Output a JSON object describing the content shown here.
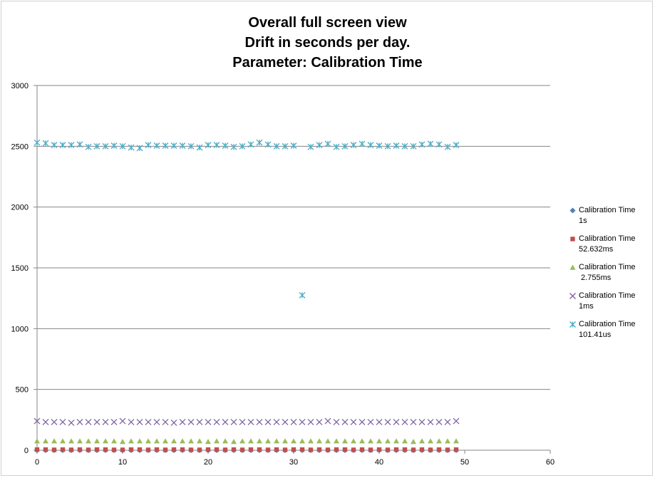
{
  "chart_data": {
    "type": "scatter",
    "title": [
      "Overall full screen view",
      "Drift in seconds per day.",
      "Parameter: Calibration Time"
    ],
    "xlabel": "",
    "ylabel": "",
    "xlim": [
      0,
      60
    ],
    "ylim": [
      0,
      3000
    ],
    "x_ticks": [
      "0",
      "10",
      "20",
      "30",
      "40",
      "50",
      "60"
    ],
    "y_ticks": [
      "0",
      "500",
      "1000",
      "1500",
      "2000",
      "2500",
      "3000"
    ],
    "grid": "horizontal",
    "legend_position": "right",
    "series": [
      {
        "name_lines": [
          "Calibration Time",
          "1s"
        ],
        "marker": "diamond-icon",
        "color": "#4f81bd",
        "x": [
          0,
          1,
          2,
          3,
          4,
          5,
          6,
          7,
          8,
          9,
          10,
          11,
          12,
          13,
          14,
          15,
          16,
          17,
          18,
          19,
          20,
          21,
          22,
          23,
          24,
          25,
          26,
          27,
          28,
          29,
          30,
          31,
          32,
          33,
          34,
          35,
          36,
          37,
          38,
          39,
          40,
          41,
          42,
          43,
          44,
          45,
          46,
          47,
          48,
          49
        ],
        "y": [
          0,
          0,
          0,
          0,
          0,
          0,
          0,
          0,
          0,
          0,
          0,
          0,
          0,
          0,
          0,
          0,
          0,
          0,
          0,
          0,
          0,
          0,
          0,
          0,
          0,
          0,
          0,
          0,
          0,
          0,
          0,
          0,
          0,
          0,
          0,
          0,
          0,
          0,
          0,
          0,
          0,
          0,
          0,
          0,
          0,
          0,
          0,
          0,
          0,
          0
        ]
      },
      {
        "name_lines": [
          "Calibration Time",
          "52.632ms"
        ],
        "marker": "square-icon",
        "color": "#c0504d",
        "x": [
          0,
          1,
          2,
          3,
          4,
          5,
          6,
          7,
          8,
          9,
          10,
          11,
          12,
          13,
          14,
          15,
          16,
          17,
          18,
          19,
          20,
          21,
          22,
          23,
          24,
          25,
          26,
          27,
          28,
          29,
          30,
          31,
          32,
          33,
          34,
          35,
          36,
          37,
          38,
          39,
          40,
          41,
          42,
          43,
          44,
          45,
          46,
          47,
          48,
          49
        ],
        "y": [
          5,
          5,
          3,
          5,
          3,
          5,
          3,
          5,
          5,
          3,
          3,
          5,
          5,
          3,
          5,
          3,
          5,
          5,
          3,
          3,
          5,
          5,
          3,
          5,
          3,
          5,
          5,
          3,
          5,
          3,
          5,
          5,
          3,
          5,
          3,
          5,
          5,
          3,
          5,
          3,
          5,
          3,
          5,
          5,
          3,
          5,
          3,
          5,
          3,
          5
        ]
      },
      {
        "name_lines": [
          "Calibration Time",
          " 2.755ms"
        ],
        "marker": "triangle-icon",
        "color": "#9bbb59",
        "x": [
          0,
          1,
          2,
          3,
          4,
          5,
          6,
          7,
          8,
          9,
          10,
          11,
          12,
          13,
          14,
          15,
          16,
          17,
          18,
          19,
          20,
          21,
          22,
          23,
          24,
          25,
          26,
          27,
          28,
          29,
          30,
          31,
          32,
          33,
          34,
          35,
          36,
          37,
          38,
          39,
          40,
          41,
          42,
          43,
          44,
          45,
          46,
          47,
          48,
          49
        ],
        "y": [
          75,
          75,
          75,
          75,
          75,
          75,
          75,
          75,
          75,
          75,
          70,
          75,
          75,
          75,
          75,
          75,
          75,
          75,
          75,
          75,
          70,
          75,
          75,
          70,
          75,
          75,
          75,
          75,
          75,
          75,
          75,
          75,
          75,
          75,
          75,
          75,
          75,
          75,
          75,
          75,
          75,
          75,
          75,
          75,
          70,
          75,
          75,
          75,
          75,
          75
        ]
      },
      {
        "name_lines": [
          "Calibration Time",
          "1ms"
        ],
        "marker": "x-mark-icon",
        "color": "#8064a2",
        "x": [
          0,
          1,
          2,
          3,
          4,
          5,
          6,
          7,
          8,
          9,
          10,
          11,
          12,
          13,
          14,
          15,
          16,
          17,
          18,
          19,
          20,
          21,
          22,
          23,
          24,
          25,
          26,
          27,
          28,
          29,
          30,
          31,
          32,
          33,
          34,
          35,
          36,
          37,
          38,
          39,
          40,
          41,
          42,
          43,
          44,
          45,
          46,
          47,
          48,
          49
        ],
        "y": [
          240,
          232,
          232,
          232,
          226,
          232,
          232,
          232,
          232,
          232,
          240,
          232,
          232,
          232,
          232,
          232,
          226,
          232,
          232,
          232,
          232,
          232,
          232,
          232,
          232,
          232,
          232,
          232,
          232,
          232,
          232,
          232,
          232,
          232,
          240,
          232,
          232,
          232,
          232,
          232,
          232,
          232,
          232,
          232,
          232,
          232,
          232,
          232,
          232,
          240
        ]
      },
      {
        "name_lines": [
          "Calibration Time",
          "101.41us"
        ],
        "marker": "asterisk-icon",
        "color": "#4bacc6",
        "x": [
          0,
          1,
          2,
          3,
          4,
          5,
          6,
          7,
          8,
          9,
          10,
          11,
          12,
          13,
          14,
          15,
          16,
          17,
          18,
          19,
          20,
          21,
          22,
          23,
          24,
          25,
          26,
          27,
          28,
          29,
          30,
          31,
          32,
          33,
          34,
          35,
          36,
          37,
          38,
          39,
          40,
          41,
          42,
          43,
          44,
          45,
          46,
          47,
          48,
          49
        ],
        "y": [
          2530,
          2525,
          2510,
          2510,
          2510,
          2515,
          2495,
          2500,
          2500,
          2505,
          2500,
          2490,
          2485,
          2510,
          2505,
          2505,
          2505,
          2505,
          2500,
          2490,
          2510,
          2510,
          2505,
          2495,
          2500,
          2515,
          2530,
          2515,
          2500,
          2500,
          2505,
          1275,
          2495,
          2510,
          2520,
          2495,
          2500,
          2510,
          2520,
          2510,
          2505,
          2500,
          2505,
          2500,
          2500,
          2515,
          2520,
          2515,
          2495,
          2510
        ]
      }
    ]
  }
}
